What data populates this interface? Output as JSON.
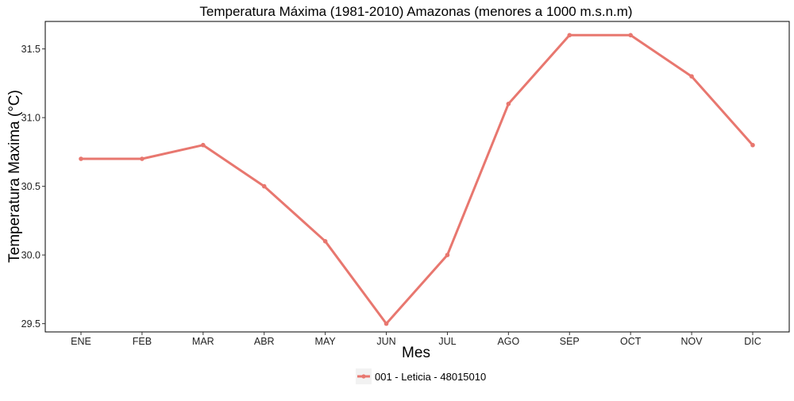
{
  "chart_data": {
    "type": "line",
    "title": "Temperatura Máxima (1981-2010) Amazonas (menores a 1000 m.s.n.m)",
    "xlabel": "Mes",
    "ylabel": "Temperatura Maxima (°C)",
    "categories": [
      "ENE",
      "FEB",
      "MAR",
      "ABR",
      "MAY",
      "JUN",
      "JUL",
      "AGO",
      "SEP",
      "OCT",
      "NOV",
      "DIC"
    ],
    "series": [
      {
        "name": "001 - Leticia - 48015010",
        "color": "#e8776f",
        "values": [
          30.7,
          30.7,
          30.8,
          30.5,
          30.1,
          29.5,
          30.0,
          31.1,
          31.6,
          31.6,
          31.3,
          30.8
        ]
      }
    ],
    "yticks": [
      29.5,
      30.0,
      30.5,
      31.0,
      31.5
    ],
    "ytick_labels": [
      "29.5",
      "30.0",
      "30.5",
      "31.0",
      "31.5"
    ],
    "ylim": [
      29.44,
      31.7
    ],
    "grid": false,
    "legend_position": "bottom"
  }
}
